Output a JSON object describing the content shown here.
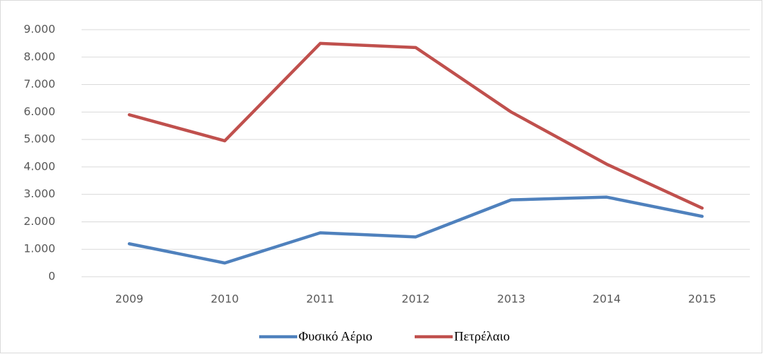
{
  "chart_data": {
    "type": "line",
    "categories": [
      "2009",
      "2010",
      "2011",
      "2012",
      "2013",
      "2014",
      "2015"
    ],
    "series": [
      {
        "name": "Φυσικό Αέριο",
        "color": "#4f81bd",
        "values": [
          1200,
          500,
          1600,
          1450,
          2800,
          2900,
          2200
        ]
      },
      {
        "name": "Πετρέλαιο",
        "color": "#c0504d",
        "values": [
          5900,
          4950,
          8500,
          8350,
          6000,
          4100,
          2500
        ]
      }
    ],
    "ylim": [
      0,
      9000
    ],
    "yticks": [
      0,
      {
        "value": 1000,
        "label": "1.000"
      },
      {
        "value": 2000,
        "label": "2.000"
      },
      {
        "value": 3000,
        "label": "3.000"
      },
      {
        "value": 4000,
        "label": "4.000"
      },
      {
        "value": 5000,
        "label": "5.000"
      },
      {
        "value": 6000,
        "label": "6.000"
      },
      {
        "value": 7000,
        "label": "7.000"
      },
      {
        "value": 8000,
        "label": "8.000"
      },
      {
        "value": 9000,
        "label": "9.000"
      }
    ],
    "grid": true,
    "legend": "bottom"
  }
}
